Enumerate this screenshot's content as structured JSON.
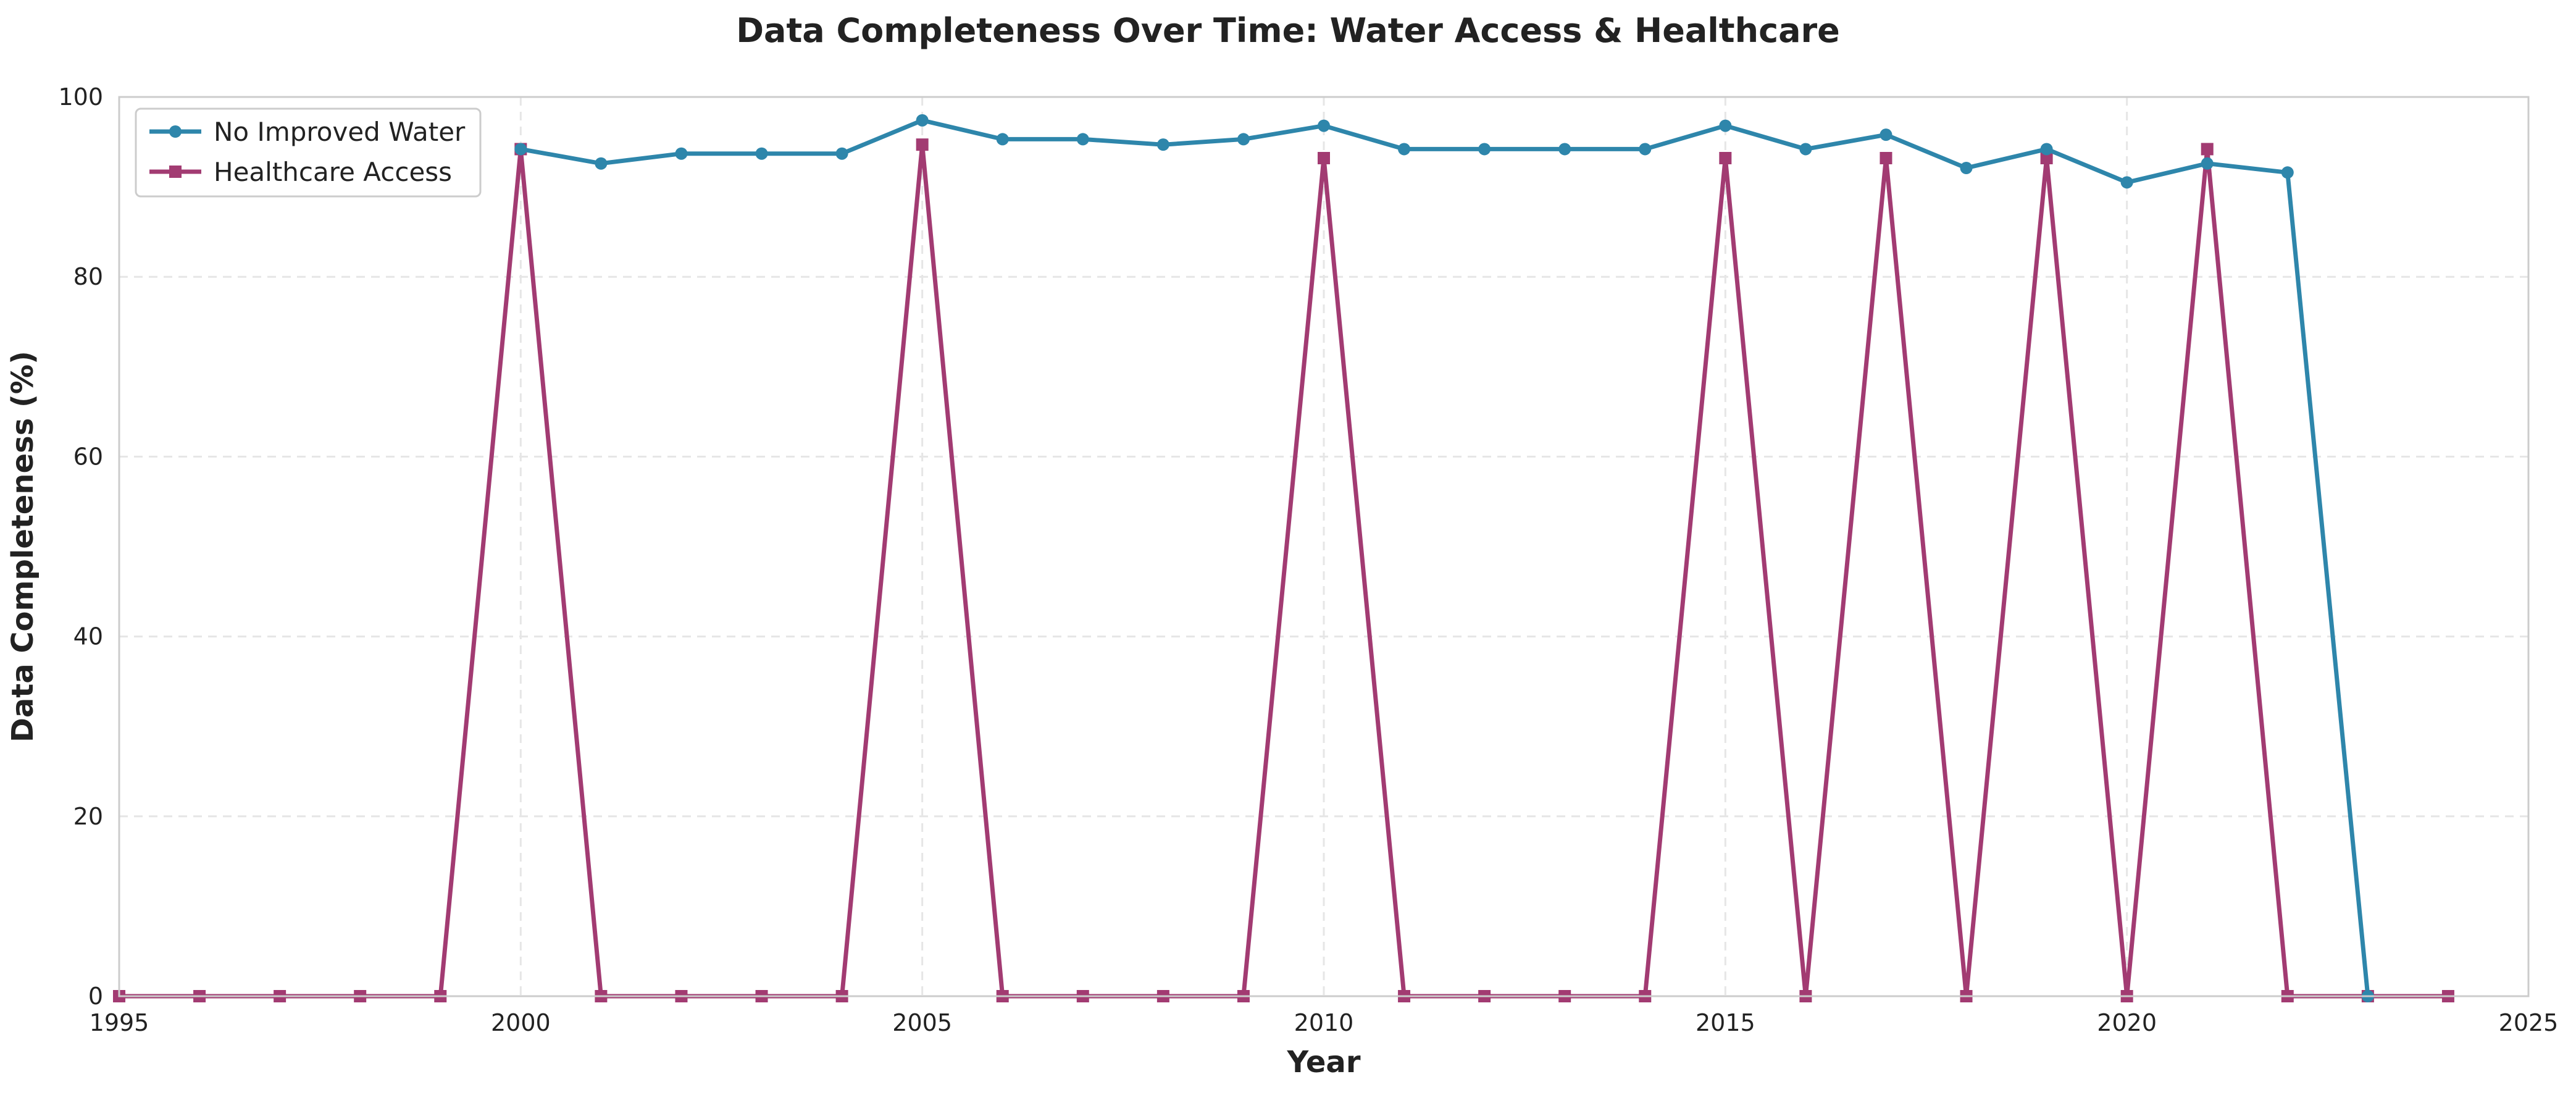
{
  "chart_data": {
    "type": "line",
    "title": "Data Completeness Over Time: Water Access & Healthcare",
    "xlabel": "Year",
    "ylabel": "Data Completeness (%)",
    "xlim": [
      1995,
      2025
    ],
    "ylim": [
      0,
      100
    ],
    "x_ticks": [
      1995,
      2000,
      2005,
      2010,
      2015,
      2020,
      2025
    ],
    "y_ticks": [
      0,
      20,
      40,
      60,
      80,
      100
    ],
    "grid": true,
    "legend_position": "upper-left",
    "x": [
      1995,
      1996,
      1997,
      1998,
      1999,
      2000,
      2001,
      2002,
      2003,
      2004,
      2005,
      2006,
      2007,
      2008,
      2009,
      2010,
      2011,
      2012,
      2013,
      2014,
      2015,
      2016,
      2017,
      2018,
      2019,
      2020,
      2021,
      2022,
      2023,
      2024
    ],
    "series": [
      {
        "name": "No Improved Water",
        "color": "#2e86ab",
        "marker": "circle",
        "values": [
          null,
          null,
          null,
          null,
          null,
          94.2,
          92.6,
          93.7,
          93.7,
          93.7,
          97.4,
          95.3,
          95.3,
          94.7,
          95.3,
          96.8,
          94.2,
          94.2,
          94.2,
          94.2,
          96.8,
          94.2,
          95.8,
          92.1,
          94.2,
          90.5,
          92.6,
          91.6,
          0,
          null
        ]
      },
      {
        "name": "Healthcare Access",
        "color": "#a23b72",
        "marker": "square",
        "values": [
          0,
          0,
          0,
          0,
          0,
          94.2,
          0,
          0,
          0,
          0,
          94.7,
          0,
          0,
          0,
          0,
          93.2,
          0,
          0,
          0,
          0,
          93.2,
          0,
          93.2,
          0,
          93.2,
          0,
          94.2,
          0,
          0,
          0
        ]
      }
    ]
  }
}
